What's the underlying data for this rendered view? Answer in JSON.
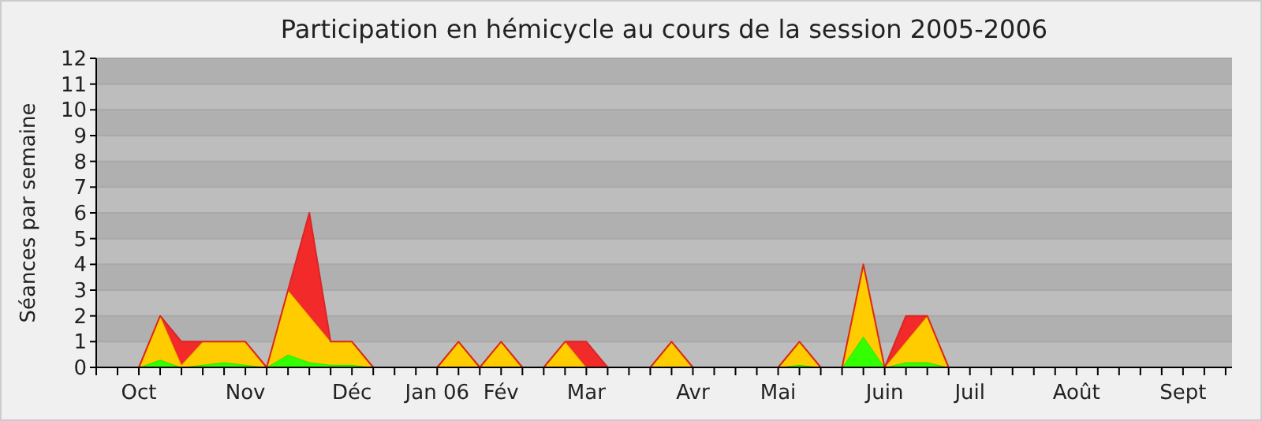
{
  "chart_data": {
    "type": "area",
    "stacked": true,
    "title": "Participation en hémicycle au cours de la session 2005-2006",
    "ylabel": "Séances par semaine",
    "categories": [
      null,
      null,
      "Oct",
      null,
      null,
      null,
      null,
      "Nov",
      null,
      null,
      null,
      null,
      "Déc",
      null,
      null,
      null,
      "Jan 06",
      null,
      null,
      "Fév",
      null,
      null,
      null,
      "Mar",
      null,
      null,
      null,
      null,
      "Avr",
      null,
      null,
      null,
      "Mai",
      null,
      null,
      null,
      null,
      "Juin",
      null,
      null,
      null,
      "Juil",
      null,
      null,
      null,
      null,
      "Août",
      null,
      null,
      null,
      null,
      "Sept",
      null,
      null
    ],
    "series": [
      {
        "color": "#33ff00",
        "values": [
          0,
          0,
          0,
          0.3,
          0,
          0.1,
          0.2,
          0.1,
          0,
          0.5,
          0.2,
          0.1,
          0.1,
          0,
          0,
          0,
          0,
          0,
          0,
          0,
          0,
          0,
          0,
          0,
          0,
          0,
          0,
          0,
          0,
          0,
          0,
          0,
          0,
          0.1,
          0,
          0,
          1.2,
          0,
          0.2,
          0.2,
          0,
          0,
          0,
          0,
          0,
          0,
          0,
          0,
          0,
          0,
          0,
          0,
          0,
          0
        ]
      },
      {
        "color": "#ffcc00",
        "values": [
          0,
          0,
          0,
          1.7,
          0.1,
          0.9,
          0.8,
          0.9,
          0,
          2.5,
          1.8,
          0.9,
          0.9,
          0,
          0,
          0,
          0,
          1,
          0,
          1,
          0,
          0,
          1,
          0,
          0,
          0,
          0,
          1,
          0,
          0,
          0,
          0,
          0,
          0.9,
          0,
          0,
          2.8,
          0,
          0.8,
          1.8,
          0,
          0,
          0,
          0,
          0,
          0,
          0,
          0,
          0,
          0,
          0,
          0,
          0,
          0
        ]
      },
      {
        "color": "#f22a2a",
        "values": [
          0,
          0,
          0,
          0,
          0.9,
          0,
          0,
          0,
          0,
          0,
          4,
          0,
          0,
          0,
          0,
          0,
          0,
          0,
          0,
          0,
          0,
          0,
          0,
          1,
          0,
          0,
          0,
          0,
          0,
          0,
          0,
          0,
          0,
          0,
          0,
          0,
          0,
          0,
          1,
          0,
          0,
          0,
          0,
          0,
          0,
          0,
          0,
          0,
          0,
          0,
          0,
          0,
          0,
          0
        ]
      }
    ],
    "ylim": [
      0,
      12
    ],
    "yticks": [
      0,
      1,
      2,
      3,
      4,
      5,
      6,
      7,
      8,
      9,
      10,
      11,
      12
    ],
    "grid": "y"
  }
}
